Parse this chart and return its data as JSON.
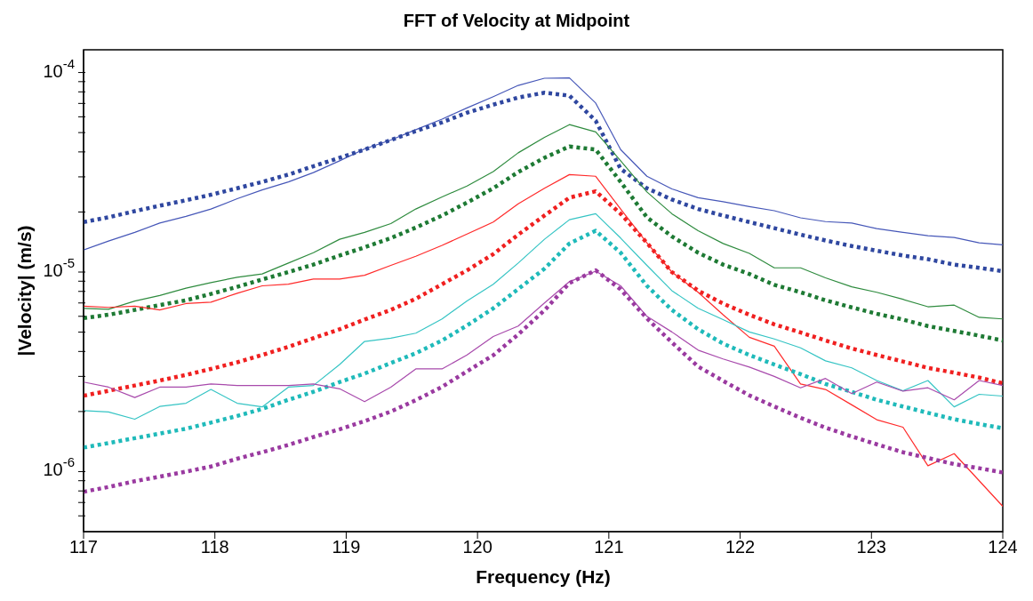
{
  "chart_data": {
    "type": "line",
    "title": "FFT of Velocity at Midpoint",
    "xlabel": "Frequency (Hz)",
    "ylabel": "|Velocity| (m/s)",
    "log": "y",
    "grid": false,
    "legend": false,
    "marker": "none",
    "x": [
      117.0,
      117.19,
      117.39,
      117.58,
      117.78,
      117.97,
      118.17,
      118.36,
      118.56,
      118.75,
      118.95,
      119.14,
      119.34,
      119.53,
      119.73,
      119.92,
      120.12,
      120.31,
      120.51,
      120.7,
      120.9,
      121.09,
      121.29,
      121.48,
      121.68,
      121.87,
      122.07,
      122.26,
      122.46,
      122.65,
      122.85,
      123.04,
      123.24,
      123.43,
      123.63,
      123.82,
      124.0
    ],
    "xlim": [
      117,
      124
    ],
    "xticks": [
      117,
      118,
      119,
      120,
      121,
      122,
      123,
      124
    ],
    "ylim": [
      5e-07,
      0.00013
    ],
    "yticks": [
      {
        "value": 6e-07,
        "label": null
      },
      {
        "value": 7e-07,
        "label": null
      },
      {
        "value": 8e-07,
        "label": null
      },
      {
        "value": 9e-07,
        "label": null
      },
      {
        "value": 1e-06,
        "label": "10$^{-6}$"
      },
      {
        "value": 2e-06,
        "label": null
      },
      {
        "value": 3e-06,
        "label": null
      },
      {
        "value": 4e-06,
        "label": null
      },
      {
        "value": 5e-06,
        "label": null
      },
      {
        "value": 6e-06,
        "label": null
      },
      {
        "value": 7e-06,
        "label": null
      },
      {
        "value": 8e-06,
        "label": null
      },
      {
        "value": 9e-06,
        "label": null
      },
      {
        "value": 1e-05,
        "label": "10$^{-5}$"
      },
      {
        "value": 2e-05,
        "label": null
      },
      {
        "value": 3e-05,
        "label": null
      },
      {
        "value": 4e-05,
        "label": null
      },
      {
        "value": 5e-05,
        "label": null
      },
      {
        "value": 6e-05,
        "label": null
      },
      {
        "value": 7e-05,
        "label": null
      },
      {
        "value": 8e-05,
        "label": null
      },
      {
        "value": 9e-05,
        "label": null
      },
      {
        "value": 0.0001,
        "label": "10$^{-4}$"
      }
    ],
    "series": [
      {
        "color": "#4657b8",
        "line_style": "solid",
        "values": [
          1.29e-05,
          1.43e-05,
          1.58e-05,
          1.76e-05,
          1.9e-05,
          2.07e-05,
          2.33e-05,
          2.58e-05,
          2.83e-05,
          3.15e-05,
          3.61e-05,
          4.14e-05,
          4.59e-05,
          5.17e-05,
          5.84e-05,
          6.65e-05,
          7.57e-05,
          8.62e-05,
          9.36e-05,
          9.4e-05,
          7.03e-05,
          4.11e-05,
          3.02e-05,
          2.61e-05,
          2.36e-05,
          2.25e-05,
          2.13e-05,
          2.03e-05,
          1.87e-05,
          1.79e-05,
          1.76e-05,
          1.65e-05,
          1.58e-05,
          1.52e-05,
          1.49e-05,
          1.4e-05,
          1.37e-05
        ]
      },
      {
        "color": "#2f47a0",
        "line_style": "dotted",
        "values": [
          1.78e-05,
          1.88e-05,
          2.02e-05,
          2.15e-05,
          2.29e-05,
          2.44e-05,
          2.63e-05,
          2.83e-05,
          3.08e-05,
          3.39e-05,
          3.74e-05,
          4.11e-05,
          4.59e-05,
          5.09e-05,
          5.63e-05,
          6.29e-05,
          6.9e-05,
          7.49e-05,
          7.92e-05,
          7.66e-05,
          5.73e-05,
          3.29e-05,
          2.63e-05,
          2.31e-05,
          2.07e-05,
          1.92e-05,
          1.78e-05,
          1.66e-05,
          1.54e-05,
          1.44e-05,
          1.35e-05,
          1.28e-05,
          1.21e-05,
          1.16e-05,
          1.09e-05,
          1.05e-05,
          1.01e-05
        ]
      },
      {
        "color": "#2e8b3e",
        "line_style": "solid",
        "values": [
          6.58e-06,
          6.51e-06,
          7.16e-06,
          7.63e-06,
          8.31e-06,
          8.85e-06,
          9.42e-06,
          9.78e-06,
          1.11e-05,
          1.25e-05,
          1.46e-05,
          1.58e-05,
          1.75e-05,
          2.07e-05,
          2.38e-05,
          2.7e-05,
          3.19e-05,
          3.96e-05,
          4.73e-05,
          5.48e-05,
          5.04e-05,
          3.61e-05,
          2.52e-05,
          1.96e-05,
          1.61e-05,
          1.39e-05,
          1.24e-05,
          1.05e-05,
          1.05e-05,
          9.36e-06,
          8.43e-06,
          7.92e-06,
          7.3e-06,
          6.7e-06,
          6.83e-06,
          5.93e-06,
          5.82e-06
        ]
      },
      {
        "color": "#1e7a34",
        "line_style": "dotted",
        "values": [
          5.88e-06,
          6.11e-06,
          6.46e-06,
          6.83e-06,
          7.22e-06,
          7.77e-06,
          8.43e-06,
          9.18e-06,
          1e-05,
          1.09e-05,
          1.21e-05,
          1.33e-05,
          1.48e-05,
          1.67e-05,
          1.92e-05,
          2.23e-05,
          2.63e-05,
          3.17e-05,
          3.74e-05,
          4.26e-05,
          4.11e-05,
          2.83e-05,
          1.88e-05,
          1.51e-05,
          1.25e-05,
          1.09e-05,
          9.78e-06,
          8.63e-06,
          7.92e-06,
          7.22e-06,
          6.65e-06,
          6.18e-06,
          5.78e-06,
          5.36e-06,
          5.07e-06,
          4.8e-06,
          4.54e-06
        ]
      },
      {
        "color": "#ff2a2a",
        "line_style": "solid",
        "values": [
          6.75e-06,
          6.65e-06,
          6.75e-06,
          6.46e-06,
          6.95e-06,
          7.06e-06,
          7.83e-06,
          8.53e-06,
          8.69e-06,
          9.22e-06,
          9.22e-06,
          9.64e-06,
          1.08e-05,
          1.2e-05,
          1.36e-05,
          1.55e-05,
          1.78e-05,
          2.2e-05,
          2.63e-05,
          3.08e-05,
          3.02e-05,
          2.07e-05,
          1.4e-05,
          1e-05,
          7.92e-06,
          6.11e-06,
          4.71e-06,
          4.25e-06,
          2.75e-06,
          2.58e-06,
          2.16e-06,
          1.82e-06,
          1.67e-06,
          1.07e-06,
          1.23e-06,
          null,
          6.7e-07
        ]
      },
      {
        "color": "#f02020",
        "line_style": "dotted",
        "values": [
          2.4e-06,
          2.54e-06,
          2.7e-06,
          2.86e-06,
          3.05e-06,
          3.27e-06,
          3.53e-06,
          3.84e-06,
          4.22e-06,
          4.66e-06,
          5.17e-06,
          5.78e-06,
          6.46e-06,
          7.35e-06,
          8.69e-06,
          1.02e-05,
          1.23e-05,
          1.54e-05,
          1.92e-05,
          2.36e-05,
          2.54e-05,
          1.96e-05,
          1.4e-05,
          1e-05,
          8.07e-06,
          6.95e-06,
          6.11e-06,
          5.47e-06,
          4.98e-06,
          4.54e-06,
          4.14e-06,
          3.84e-06,
          3.56e-06,
          3.31e-06,
          3.13e-06,
          2.96e-06,
          2.77e-06
        ]
      },
      {
        "color": "#35c4c4",
        "line_style": "solid",
        "values": [
          2.02e-06,
          1.99e-06,
          1.83e-06,
          2.12e-06,
          2.2e-06,
          2.58e-06,
          2.2e-06,
          2.11e-06,
          2.65e-06,
          2.7e-06,
          3.44e-06,
          4.49e-06,
          4.66e-06,
          4.94e-06,
          5.82e-06,
          7.16e-06,
          8.69e-06,
          1.11e-05,
          1.46e-05,
          1.83e-05,
          1.96e-05,
          1.48e-05,
          1.08e-05,
          8.07e-06,
          6.58e-06,
          5.78e-06,
          5.01e-06,
          4.62e-06,
          4.17e-06,
          3.59e-06,
          3.31e-06,
          2.86e-06,
          2.54e-06,
          2.86e-06,
          2.11e-06,
          2.44e-06,
          2.39e-06
        ]
      },
      {
        "color": "#1fbaba",
        "line_style": "dotted",
        "values": [
          1.32e-06,
          1.39e-06,
          1.47e-06,
          1.55e-06,
          1.64e-06,
          1.76e-06,
          1.9e-06,
          2.06e-06,
          2.29e-06,
          2.51e-06,
          2.81e-06,
          3.1e-06,
          3.5e-06,
          3.92e-06,
          4.54e-06,
          5.4e-06,
          6.58e-06,
          8.22e-06,
          1.04e-05,
          1.39e-05,
          1.61e-05,
          1.25e-05,
          8.53e-06,
          6.46e-06,
          5.17e-06,
          4.38e-06,
          3.84e-06,
          3.44e-06,
          3.08e-06,
          2.75e-06,
          2.51e-06,
          2.29e-06,
          2.12e-06,
          1.97e-06,
          1.83e-06,
          1.73e-06,
          1.65e-06
        ]
      },
      {
        "color": "#a84aac",
        "line_style": "solid",
        "values": [
          2.81e-06,
          2.65e-06,
          2.35e-06,
          2.65e-06,
          2.65e-06,
          2.75e-06,
          2.7e-06,
          2.7e-06,
          2.7e-06,
          2.75e-06,
          2.6e-06,
          2.24e-06,
          2.65e-06,
          3.27e-06,
          3.27e-06,
          3.84e-06,
          4.75e-06,
          5.36e-06,
          7e-06,
          8.95e-06,
          1.01e-05,
          8.53e-06,
          6e-06,
          5.01e-06,
          4.06e-06,
          3.67e-06,
          3.34e-06,
          3e-06,
          2.63e-06,
          2.93e-06,
          2.46e-06,
          2.81e-06,
          2.53e-06,
          2.63e-06,
          2.29e-06,
          2.86e-06,
          2.7e-06
        ]
      },
      {
        "color": "#9a3aa0",
        "line_style": "dotted",
        "values": [
          7.92e-07,
          8.37e-07,
          8.95e-07,
          9.43e-07,
          1e-06,
          1.06e-06,
          1.16e-06,
          1.25e-06,
          1.36e-06,
          1.49e-06,
          1.63e-06,
          1.79e-06,
          2e-06,
          2.28e-06,
          2.66e-06,
          3.18e-06,
          3.83e-06,
          4.87e-06,
          6.43e-06,
          8.81e-06,
          1.02e-05,
          8.18e-06,
          5.86e-06,
          4.44e-06,
          3.36e-06,
          2.85e-06,
          2.41e-06,
          2.12e-06,
          1.86e-06,
          1.66e-06,
          1.5e-06,
          1.37e-06,
          1.25e-06,
          1.17e-06,
          1.09e-06,
          1.04e-06,
          9.9e-07
        ]
      }
    ]
  }
}
